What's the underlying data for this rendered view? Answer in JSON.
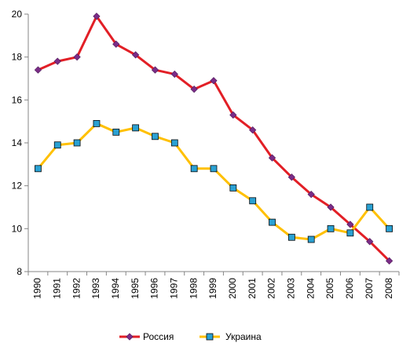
{
  "chart_data": {
    "type": "line",
    "title": "",
    "xlabel": "",
    "ylabel": "",
    "x": [
      "1990",
      "1991",
      "1992",
      "1993",
      "1994",
      "1995",
      "1996",
      "1997",
      "1998",
      "1999",
      "2000",
      "2001",
      "2002",
      "2003",
      "2004",
      "2005",
      "2006",
      "2007",
      "2008"
    ],
    "ylim": [
      8,
      20
    ],
    "yticks": [
      8,
      10,
      12,
      14,
      16,
      18,
      20
    ],
    "grid": false,
    "legend": "bottom",
    "series": [
      {
        "name": "Россия",
        "color": "#e21f26",
        "marker": "diamond",
        "marker_color": "#7b2c87",
        "values": [
          17.4,
          17.8,
          18.0,
          19.9,
          18.6,
          18.1,
          17.4,
          17.2,
          16.5,
          16.9,
          15.3,
          14.6,
          13.3,
          12.4,
          11.6,
          11.0,
          10.2,
          9.4,
          8.5
        ]
      },
      {
        "name": "Украина",
        "color": "#ffc000",
        "marker": "square",
        "marker_color": "#2aa1d3",
        "values": [
          12.8,
          13.9,
          14.0,
          14.9,
          14.5,
          14.7,
          14.3,
          14.0,
          12.8,
          12.8,
          11.9,
          11.3,
          10.3,
          9.6,
          9.5,
          10.0,
          9.8,
          11.0,
          10.0
        ]
      }
    ]
  }
}
